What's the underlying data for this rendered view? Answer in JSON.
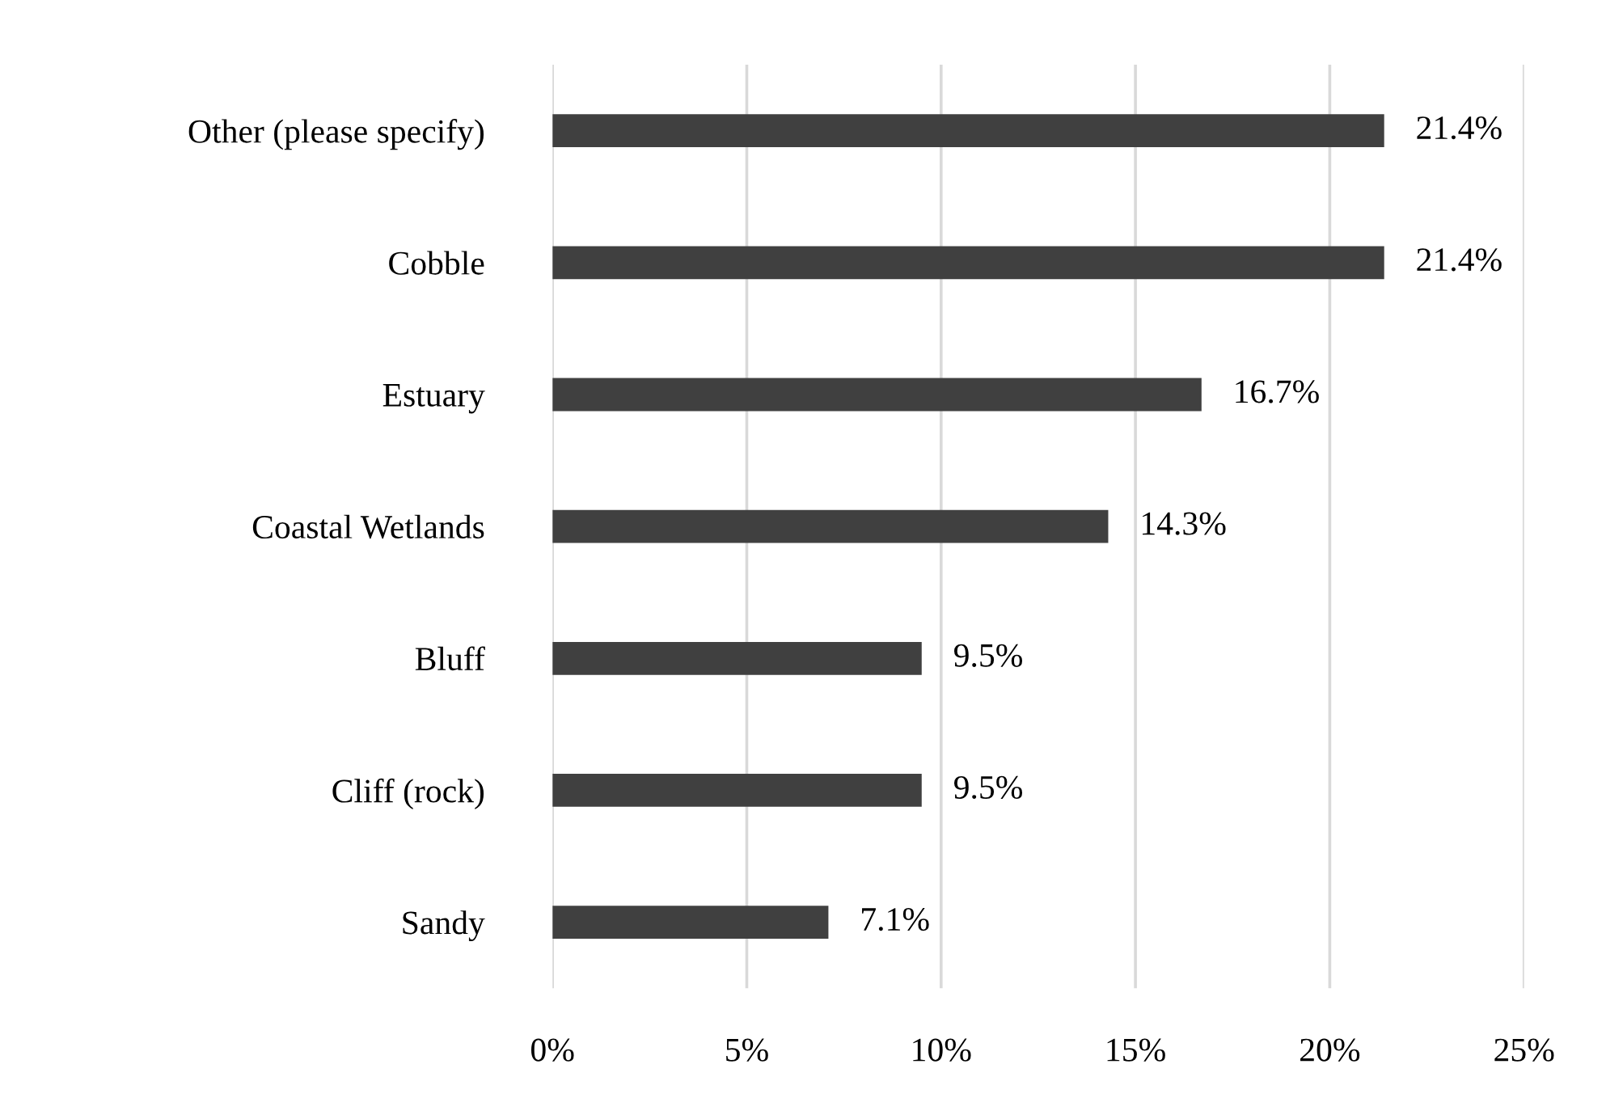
{
  "chart_data": {
    "type": "bar",
    "orientation": "horizontal",
    "categories": [
      "Other (please specify)",
      "Cobble",
      "Estuary",
      "Coastal Wetlands",
      "Bluff",
      "Cliff (rock)",
      "Sandy"
    ],
    "values": [
      21.4,
      21.4,
      16.7,
      14.3,
      9.5,
      9.5,
      7.1
    ],
    "value_labels": [
      "21.4%",
      "21.4%",
      "16.7%",
      "14.3%",
      "9.5%",
      "9.5%",
      "7.1%"
    ],
    "color": "#404040",
    "xlim": [
      0,
      25
    ],
    "xticks": [
      {
        "value": 0,
        "label": "0%"
      },
      {
        "value": 5,
        "label": "5%"
      },
      {
        "value": 10,
        "label": "10%"
      },
      {
        "value": 15,
        "label": "15%"
      },
      {
        "value": 20,
        "label": "20%"
      },
      {
        "value": 25,
        "label": "25%"
      }
    ],
    "grid": "x",
    "legend": false
  }
}
